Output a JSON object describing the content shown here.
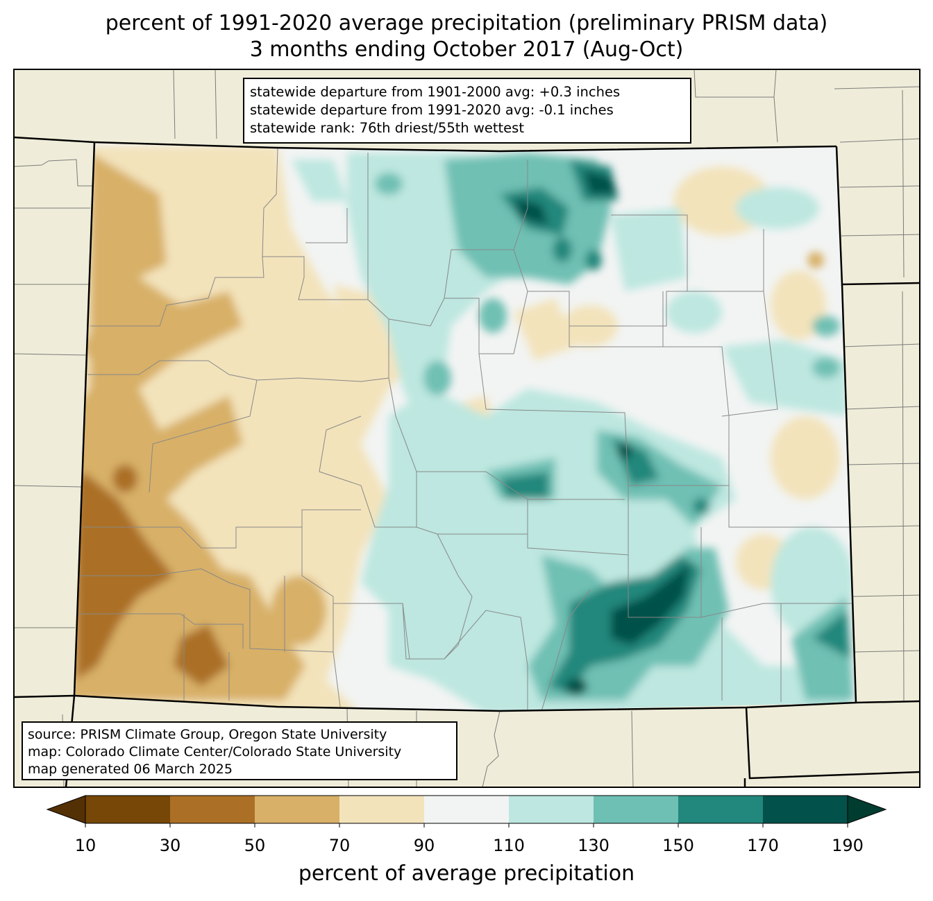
{
  "title": {
    "line1": "percent of 1991-2020 average precipitation (preliminary PRISM data)",
    "line2": "3 months ending October 2017 (Aug-Oct)"
  },
  "stats_box": {
    "line1": "statewide departure from 1901-2000 avg: +0.3 inches",
    "line2": "statewide departure from 1991-2020 avg: -0.1 inches",
    "line3": "statewide rank: 76th driest/55th wettest"
  },
  "source_box": {
    "line1": "source: PRISM Climate Group, Oregon State University",
    "line2": "map: Colorado Climate Center/Colorado State University",
    "line3": "map generated 06 March 2025"
  },
  "colorbar": {
    "label": "percent of average precipitation",
    "ticks": [
      "10",
      "30",
      "50",
      "70",
      "90",
      "110",
      "130",
      "150",
      "170",
      "190"
    ],
    "colors": [
      "#764707",
      "#ab6f25",
      "#d8b068",
      "#f3e3bb",
      "#f2f4f3",
      "#bde7e0",
      "#6fc0b4",
      "#22877c",
      "#02514a"
    ],
    "under_color": "#543005",
    "over_color": "#003c30"
  },
  "map_colors": {
    "background": "#efedd9",
    "state_fill": "#f2f4f3"
  }
}
